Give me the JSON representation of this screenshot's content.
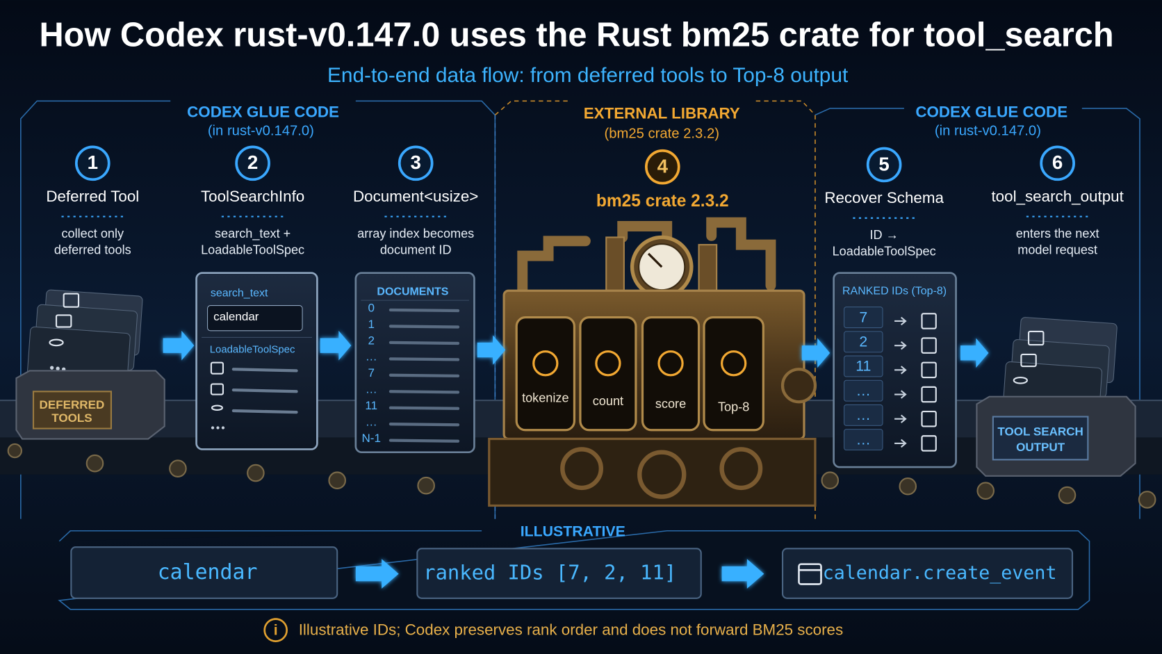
{
  "header": {
    "title": "How Codex rust-v0.147.0 uses the Rust bm25 crate for tool_search",
    "subtitle": "End-to-end data flow: from deferred tools to Top-8 output"
  },
  "sections": [
    {
      "title": "CODEX GLUE CODE",
      "subtitle": "(in rust-v0.147.0)"
    },
    {
      "title": "EXTERNAL LIBRARY",
      "subtitle": "(bm25 crate 2.3.2)"
    },
    {
      "title": "CODEX GLUE CODE",
      "subtitle": "(in rust-v0.147.0)"
    }
  ],
  "steps": [
    {
      "number": "1",
      "title": "Deferred Tool",
      "description": [
        "collect only",
        "deferred tools"
      ]
    },
    {
      "number": "2",
      "title": "ToolSearchInfo",
      "description": [
        "search_text +",
        "LoadableToolSpec"
      ]
    },
    {
      "number": "3",
      "title": "Document<usize>",
      "description": [
        "array index becomes",
        "document ID"
      ]
    },
    {
      "number": "4",
      "title": "bm25 crate 2.3.2",
      "description": []
    },
    {
      "number": "5",
      "title": "Recover Schema",
      "description": [
        "ID →",
        "LoadableToolSpec"
      ]
    },
    {
      "number": "6",
      "title": "tool_search_output",
      "description": [
        "enters the next",
        "model request"
      ]
    }
  ],
  "cards": {
    "deferred_tools": [
      "DEFERRED",
      "TOOLS"
    ],
    "tool_search_info": {
      "field": "search_text",
      "query": "calendar",
      "spec": "LoadableToolSpec"
    },
    "documents": {
      "title": "DOCUMENTS",
      "rows": [
        "0",
        "1",
        "2",
        "…",
        "7",
        "…",
        "11",
        "…",
        "N-1"
      ]
    },
    "engine": {
      "stages": [
        "tokenize",
        "count",
        "score",
        "Top-8"
      ]
    },
    "ranked": {
      "title": "RANKED IDs (Top-8)",
      "ids": [
        "7",
        "2",
        "11",
        "…",
        "…",
        "…"
      ]
    },
    "output": [
      "TOOL SEARCH",
      "OUTPUT"
    ]
  },
  "illustrative": {
    "label": "ILLUSTRATIVE",
    "input": "calendar",
    "ranked": "ranked IDs [7, 2, 11]",
    "result": "calendar.create_event"
  },
  "note": "Illustrative IDs; Codex preserves rank order and does not forward BM25 scores"
}
